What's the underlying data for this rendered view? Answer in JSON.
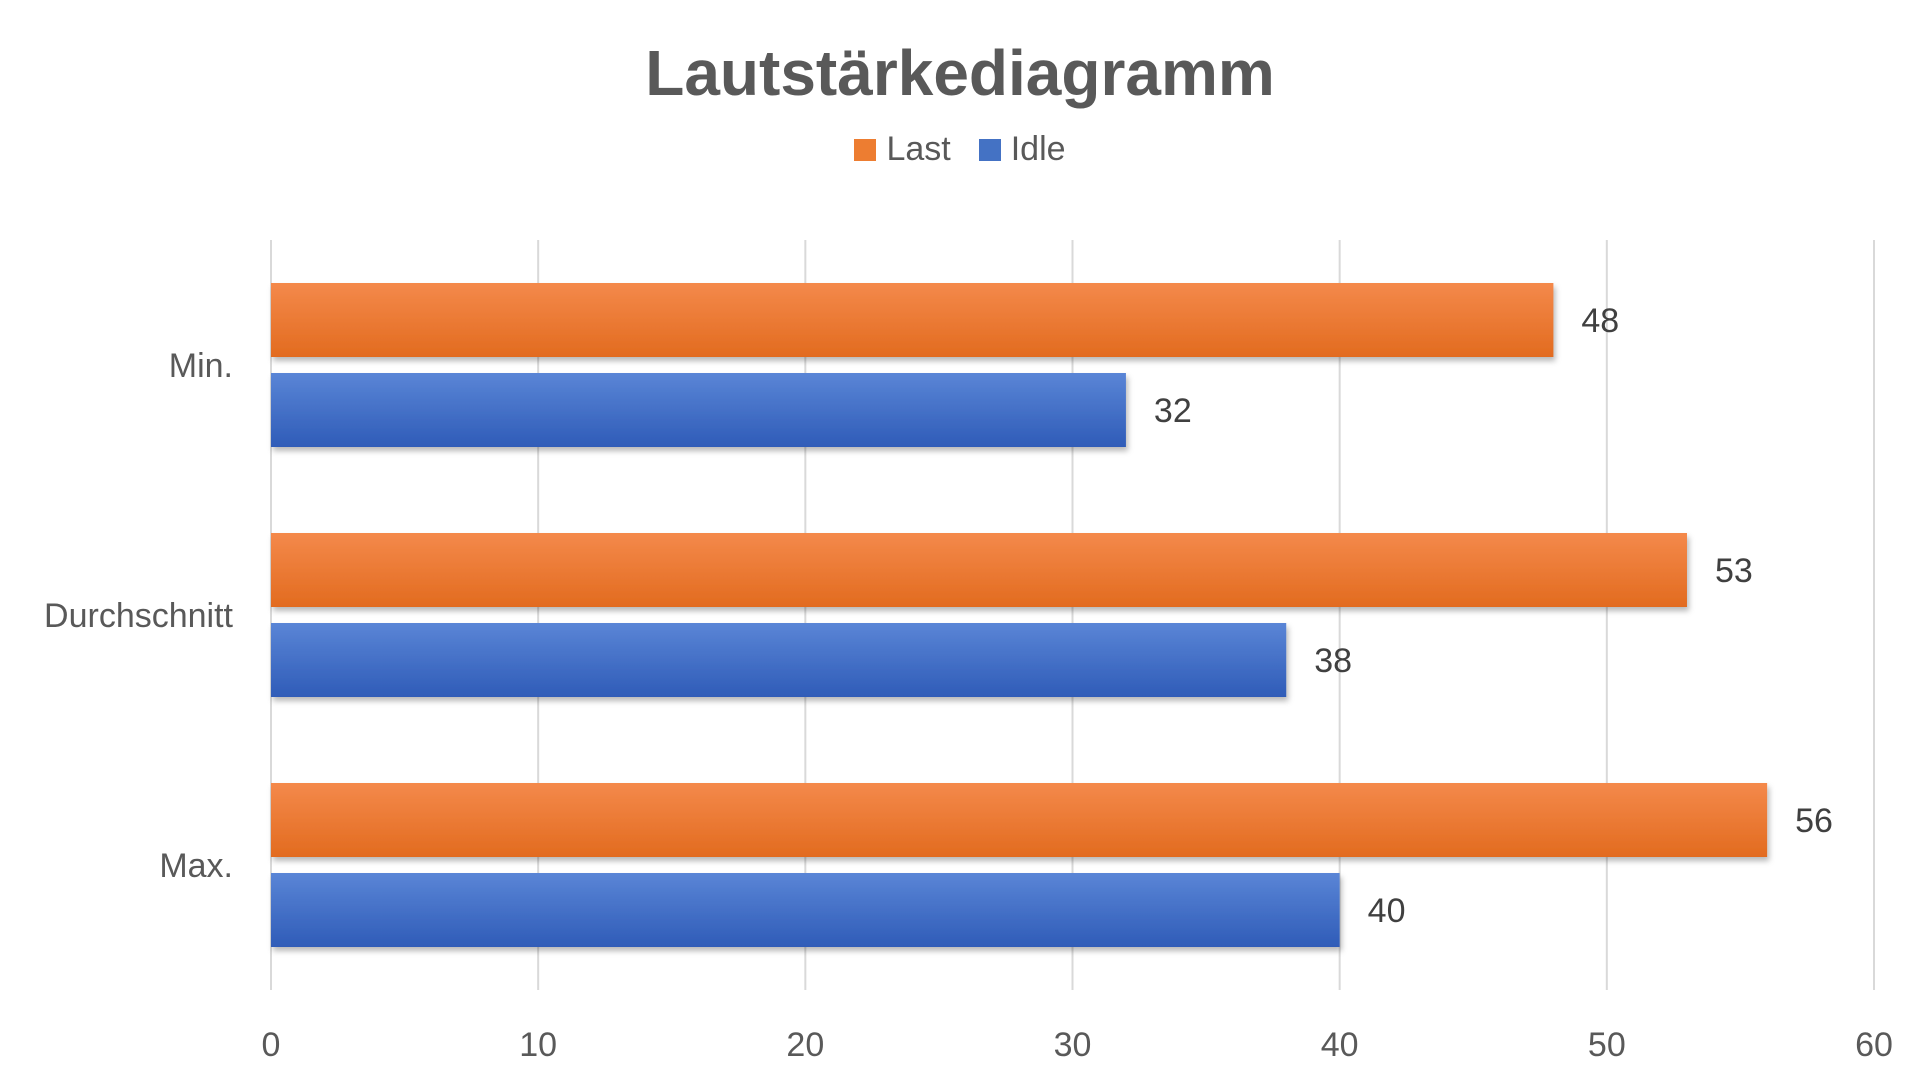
{
  "chart_data": {
    "type": "bar",
    "orientation": "horizontal",
    "title": "Lautstärkediagramm",
    "categories": [
      "Min.",
      "Durchschnitt",
      "Max."
    ],
    "series": [
      {
        "name": "Last",
        "values": [
          48,
          53,
          56
        ],
        "color": "#ED7D31"
      },
      {
        "name": "Idle",
        "values": [
          32,
          38,
          40
        ],
        "color": "#4472C4"
      }
    ],
    "xlim": [
      0,
      60
    ],
    "x_ticks": [
      "0",
      "10",
      "20",
      "30",
      "40",
      "50",
      "60"
    ],
    "grid": true,
    "legend_position": "top",
    "data_labels": true
  }
}
